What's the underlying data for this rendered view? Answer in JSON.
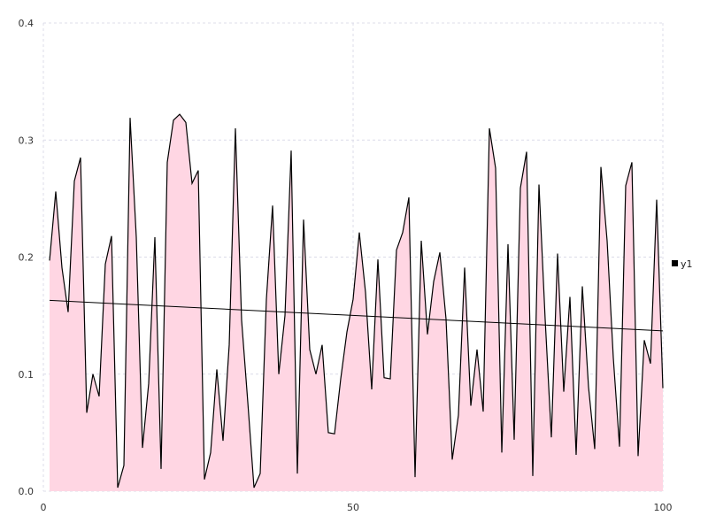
{
  "chart_data": {
    "type": "area",
    "title": "",
    "xlabel": "",
    "ylabel": "",
    "xlim": [
      0,
      100
    ],
    "ylim": [
      0,
      0.4
    ],
    "x_ticks": [
      "0",
      "50",
      "100"
    ],
    "y_ticks": [
      "0.0",
      "0.1",
      "0.2",
      "0.3",
      "0.4"
    ],
    "grid": true,
    "legend_position": "right",
    "fill_color": "#ffd6e3",
    "line_color": "#000000",
    "series": [
      {
        "name": "y1",
        "x": [
          1,
          2,
          3,
          4,
          5,
          6,
          7,
          8,
          9,
          10,
          11,
          12,
          13,
          14,
          15,
          16,
          17,
          18,
          19,
          20,
          21,
          22,
          23,
          24,
          25,
          26,
          27,
          28,
          29,
          30,
          31,
          32,
          33,
          34,
          35,
          36,
          37,
          38,
          39,
          40,
          41,
          42,
          43,
          44,
          45,
          46,
          47,
          48,
          49,
          50,
          51,
          52,
          53,
          54,
          55,
          56,
          57,
          58,
          59,
          60,
          61,
          62,
          63,
          64,
          65,
          66,
          67,
          68,
          69,
          70,
          71,
          72,
          73,
          74,
          75,
          76,
          77,
          78,
          79,
          80,
          81,
          82,
          83,
          84,
          85,
          86,
          87,
          88,
          89,
          90,
          91,
          92,
          93,
          94,
          95,
          96,
          97,
          98,
          99,
          100
        ],
        "values": [
          0.197,
          0.256,
          0.191,
          0.153,
          0.265,
          0.285,
          0.067,
          0.1,
          0.081,
          0.194,
          0.218,
          0.003,
          0.022,
          0.319,
          0.217,
          0.037,
          0.092,
          0.217,
          0.019,
          0.281,
          0.317,
          0.322,
          0.315,
          0.263,
          0.274,
          0.01,
          0.033,
          0.104,
          0.043,
          0.125,
          0.31,
          0.146,
          0.076,
          0.003,
          0.015,
          0.164,
          0.244,
          0.1,
          0.15,
          0.291,
          0.015,
          0.232,
          0.121,
          0.1,
          0.125,
          0.05,
          0.049,
          0.096,
          0.136,
          0.164,
          0.221,
          0.17,
          0.087,
          0.198,
          0.097,
          0.096,
          0.206,
          0.221,
          0.251,
          0.012,
          0.214,
          0.134,
          0.179,
          0.204,
          0.147,
          0.027,
          0.065,
          0.191,
          0.073,
          0.121,
          0.068,
          0.31,
          0.276,
          0.033,
          0.211,
          0.044,
          0.259,
          0.29,
          0.013,
          0.262,
          0.147,
          0.046,
          0.203,
          0.085,
          0.166,
          0.031,
          0.175,
          0.089,
          0.036,
          0.277,
          0.214,
          0.114,
          0.038,
          0.261,
          0.281,
          0.03,
          0.129,
          0.109,
          0.249,
          0.088
        ]
      }
    ],
    "trend_line": {
      "x": [
        1,
        100
      ],
      "values": [
        0.163,
        0.137
      ]
    }
  }
}
